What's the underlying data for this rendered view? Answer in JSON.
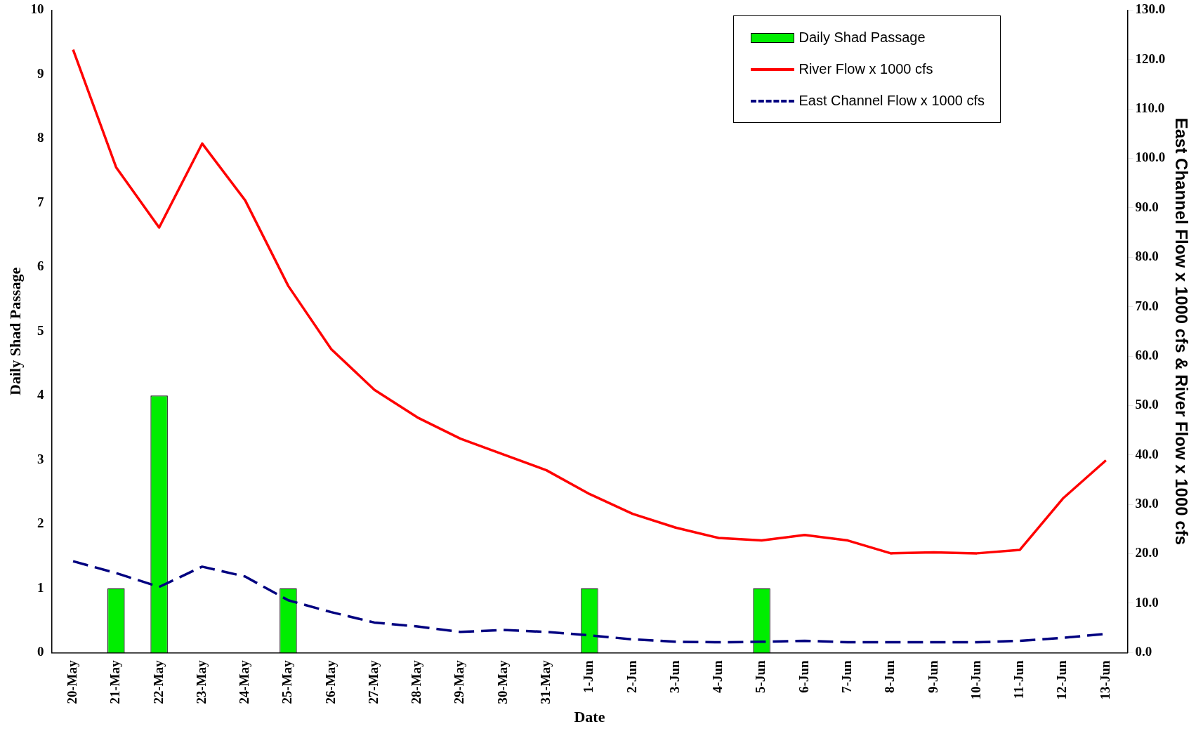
{
  "chart_data": {
    "type": "bar",
    "xlabel": "Date",
    "ylabel": "Daily Shad Passage",
    "y2label": "East Channel Flow x 1000 cfs & River Flow x 1000 cfs",
    "categories": [
      "20-May",
      "21-May",
      "22-May",
      "23-May",
      "24-May",
      "25-May",
      "26-May",
      "27-May",
      "28-May",
      "29-May",
      "30-May",
      "31-May",
      "1-Jun",
      "2-Jun",
      "3-Jun",
      "4-Jun",
      "5-Jun",
      "6-Jun",
      "7-Jun",
      "8-Jun",
      "9-Jun",
      "10-Jun",
      "11-Jun",
      "12-Jun",
      "13-Jun"
    ],
    "series": [
      {
        "name": "Daily Shad Passage",
        "color": "#00ee00",
        "values": [
          0,
          1,
          4,
          0,
          0,
          1,
          0,
          0,
          0,
          0,
          0,
          0,
          1,
          0,
          0,
          0,
          1,
          0,
          0,
          0,
          0,
          0,
          0,
          0,
          0
        ]
      },
      {
        "name": "River Flow x 1000  cfs",
        "type": "line",
        "axis": "y2",
        "color": "#ff0000",
        "line_style": "solid",
        "values": [
          122,
          98.2,
          86,
          103,
          91.5,
          74.2,
          61.4,
          53.2,
          47.6,
          43.3,
          40.1,
          36.9,
          32.1,
          28.1,
          25.3,
          23.2,
          22.7,
          23.8,
          22.7,
          20.1,
          20.3,
          20.1,
          20.8,
          31.2,
          38.9
        ]
      },
      {
        "name": "East Channel  Flow x 1000 cfs",
        "type": "line",
        "axis": "y2",
        "color": "#000080",
        "line_style": "dashed",
        "values": [
          18.5,
          16.1,
          13.3,
          17.4,
          15.4,
          10.6,
          8.2,
          6.1,
          5.3,
          4.2,
          4.6,
          4.2,
          3.5,
          2.7,
          2.2,
          2.1,
          2.2,
          2.4,
          2.1,
          2.1,
          2.1,
          2.1,
          2.4,
          3.0,
          3.8
        ]
      }
    ],
    "ylim": [
      0,
      10
    ],
    "yticks": [
      0,
      1,
      2,
      3,
      4,
      5,
      6,
      7,
      8,
      9,
      10
    ],
    "y2lim": [
      0,
      130
    ],
    "y2ticks": [
      {
        "value": 0,
        "label": "0.0"
      },
      {
        "value": 10,
        "label": "10.0"
      },
      {
        "value": 20,
        "label": "20.0"
      },
      {
        "value": 30,
        "label": "30.0"
      },
      {
        "value": 40,
        "label": "40.0"
      },
      {
        "value": 50,
        "label": "50.0"
      },
      {
        "value": 60,
        "label": "60.0"
      },
      {
        "value": 70,
        "label": "70.0"
      },
      {
        "value": 80,
        "label": "80.0"
      },
      {
        "value": 90,
        "label": "90.0"
      },
      {
        "value": 100,
        "label": "100.0"
      },
      {
        "value": 110,
        "label": "110.0"
      },
      {
        "value": 120,
        "label": "120.0"
      },
      {
        "value": 130,
        "label": "130.0"
      }
    ],
    "grid": false,
    "legend": "top right",
    "marker": "none"
  }
}
